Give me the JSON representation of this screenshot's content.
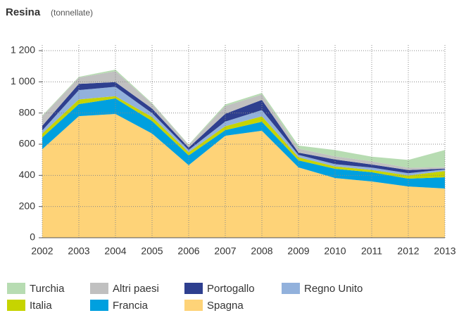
{
  "chart_data": {
    "type": "stacked_area",
    "title": "Resina",
    "subtitle": "(tonnellate)",
    "categories": [
      "2002",
      "2003",
      "2004",
      "2005",
      "2006",
      "2007",
      "2008",
      "2009",
      "2010",
      "2011",
      "2012",
      "2013"
    ],
    "series": [
      {
        "name": "Turchia",
        "color": "#b7dcb2",
        "values": [
          5,
          5,
          10,
          5,
          5,
          10,
          10,
          20,
          40,
          30,
          50,
          110
        ]
      },
      {
        "name": "Altri paesi",
        "color": "#c0c0c0",
        "values": [
          60,
          40,
          70,
          30,
          15,
          50,
          35,
          25,
          20,
          20,
          15,
          10
        ]
      },
      {
        "name": "Portogallo",
        "color": "#2e3f8f",
        "values": [
          30,
          40,
          30,
          30,
          15,
          50,
          65,
          15,
          30,
          20,
          20,
          5
        ]
      },
      {
        "name": "Regno Unito",
        "color": "#92b1dc",
        "values": [
          20,
          60,
          60,
          25,
          15,
          30,
          40,
          15,
          15,
          15,
          15,
          10
        ]
      },
      {
        "name": "Italia",
        "color": "#c6d400",
        "values": [
          25,
          30,
          15,
          25,
          20,
          25,
          35,
          20,
          15,
          15,
          20,
          40
        ]
      },
      {
        "name": "Francia",
        "color": "#00a0df",
        "values": [
          75,
          77,
          99,
          81,
          63,
          36,
          58,
          45,
          59,
          59,
          50,
          72
        ]
      },
      {
        "name": "Spagna",
        "color": "#fed378",
        "values": [
          568,
          780,
          794,
          668,
          465,
          654,
          686,
          451,
          383,
          361,
          329,
          316
        ]
      }
    ],
    "ylim": [
      0,
      1200
    ],
    "yticks": [
      0,
      200,
      400,
      600,
      800,
      {
        "value": 1000,
        "label": "1 000"
      },
      {
        "value": 1200,
        "label": "1 200"
      }
    ],
    "grid": true
  }
}
